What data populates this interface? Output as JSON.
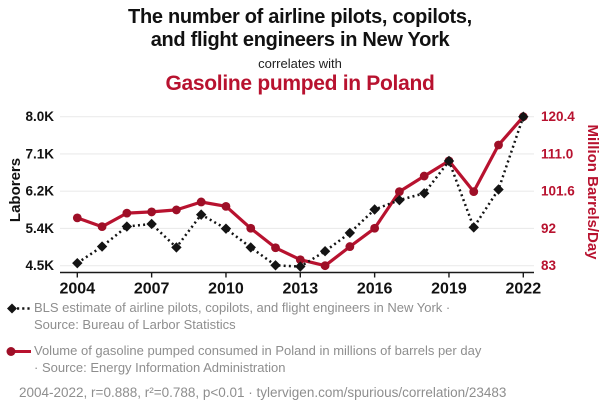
{
  "title": {
    "line1": "The number of airline pilots, copilots,",
    "line2": "and flight engineers in New York",
    "connector": "correlates with",
    "series2_title": "Gasoline pumped in Poland"
  },
  "colors": {
    "accent_red": "#b8122f",
    "line_red": "#b8122f",
    "marker_red": "#9e0f27",
    "series_black": "#141414",
    "grid": "#ebebeb",
    "axis": "#1a1a1a",
    "muted_text": "#8e8e8e"
  },
  "chart_data": {
    "type": "line",
    "x": [
      2004,
      2005,
      2006,
      2007,
      2008,
      2009,
      2010,
      2011,
      2012,
      2013,
      2014,
      2015,
      2016,
      2017,
      2018,
      2019,
      2020,
      2021,
      2022
    ],
    "x_tick_labels": [
      "2004",
      "2007",
      "2010",
      "2013",
      "2016",
      "2019",
      "2022"
    ],
    "left_axis": {
      "label": "Laborers",
      "min": 4.5,
      "max": 8.0,
      "tick_labels": [
        "4.5K",
        "5.4K",
        "6.2K",
        "7.1K",
        "8.0K"
      ]
    },
    "right_axis": {
      "label": "Million Barrels/Day",
      "min": 83,
      "max": 120.4,
      "tick_labels": [
        "83",
        "92",
        "101.6",
        "111.0",
        "120.4"
      ]
    },
    "series": [
      {
        "name": "BLS estimate of airline pilots, copilots, and flight engineers in New York",
        "axis": "left",
        "style": "dotted-diamond",
        "values": [
          4.56,
          4.95,
          5.42,
          5.48,
          4.93,
          5.7,
          5.37,
          4.93,
          4.51,
          4.48,
          4.84,
          5.27,
          5.82,
          6.04,
          6.2,
          6.96,
          5.4,
          6.29,
          8.0
        ]
      },
      {
        "name": "Volume of gasoline pumped consumed in Poland",
        "axis": "right",
        "style": "solid-circle",
        "values": [
          95.0,
          92.8,
          96.2,
          96.5,
          97.0,
          99.0,
          97.9,
          92.4,
          87.5,
          84.5,
          83.0,
          87.8,
          92.4,
          101.6,
          105.5,
          109.3,
          101.6,
          113.3,
          120.4
        ]
      }
    ],
    "grid": true,
    "legend_position": "bottom"
  },
  "legend": {
    "items": [
      {
        "line1": "BLS estimate of airline pilots, copilots, and flight engineers in New York ·",
        "line2": "Source: Bureau of Larbor Statistics"
      },
      {
        "line1": "Volume of gasoline pumped consumed in Poland in millions of barrels per day",
        "line2": "· Source: Energy Information Administration"
      }
    ]
  },
  "footer": {
    "text": "2004-2022, r=0.888, r²=0.788, p<0.01 · tylervigen.com/spurious/correlation/23483"
  }
}
